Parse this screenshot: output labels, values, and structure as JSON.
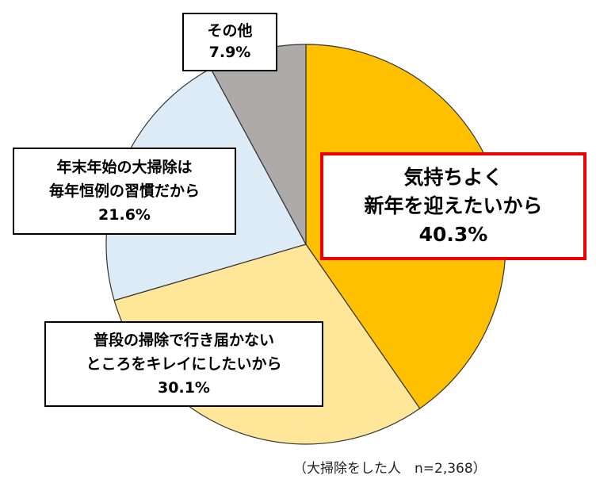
{
  "chart_data": {
    "type": "pie",
    "start_angle_deg": 0,
    "direction": "clockwise",
    "slices": [
      {
        "lines": [
          "気持ちよく",
          "新年を迎えたいから"
        ],
        "value": 40.3,
        "value_label": "40.3%",
        "color": "#FFC000"
      },
      {
        "lines": [
          "普段の掃除で行き届かない",
          "ところをキレイにしたいから"
        ],
        "value": 30.1,
        "value_label": "30.1%",
        "color": "#FFE699"
      },
      {
        "lines": [
          "年末年始の大掃除は",
          "毎年恒例の習慣だから"
        ],
        "value": 21.6,
        "value_label": "21.6%",
        "color": "#DDEBF7"
      },
      {
        "lines": [
          "その他"
        ],
        "value": 7.9,
        "value_label": "7.9%",
        "color": "#AEAAAA"
      }
    ],
    "highlight_color": "#EE0000",
    "note": "（大掃除をした人　n=2,368）"
  }
}
